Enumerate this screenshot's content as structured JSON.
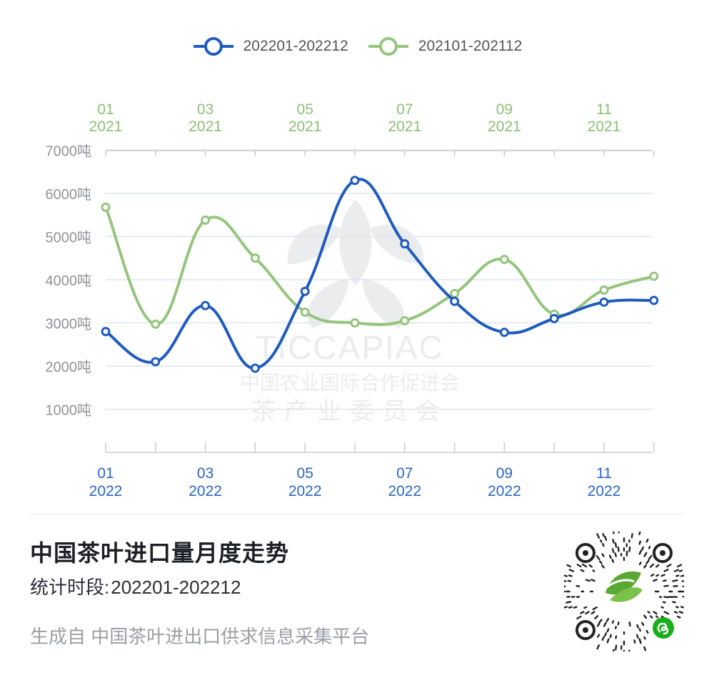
{
  "colors": {
    "series_2022": "#1f5bbf",
    "series_2021": "#95c47e",
    "axis_2022_label": "#2a66c6",
    "axis_2021_label": "#8cbf74",
    "y_label": "#8f9399",
    "grid": "#dde4ef"
  },
  "chart_data": {
    "type": "line",
    "legend_position": "top-center",
    "grid": true,
    "ylim": [
      0,
      7000
    ],
    "y_ticks": [
      "1000吨",
      "2000吨",
      "3000吨",
      "4000吨",
      "5000吨",
      "6000吨",
      "7000吨"
    ],
    "x_bottom_ticks": [
      {
        "month": "01",
        "year": "2022"
      },
      {
        "month": "03",
        "year": "2022"
      },
      {
        "month": "05",
        "year": "2022"
      },
      {
        "month": "07",
        "year": "2022"
      },
      {
        "month": "09",
        "year": "2022"
      },
      {
        "month": "11",
        "year": "2022"
      }
    ],
    "x_top_ticks": [
      {
        "month": "01",
        "year": "2021"
      },
      {
        "month": "03",
        "year": "2021"
      },
      {
        "month": "05",
        "year": "2021"
      },
      {
        "month": "07",
        "year": "2021"
      },
      {
        "month": "09",
        "year": "2021"
      },
      {
        "month": "11",
        "year": "2021"
      }
    ],
    "series": [
      {
        "name": "202201-202212",
        "color": "#1f5bbf",
        "axis": "bottom",
        "values": [
          2800,
          2100,
          3400,
          1950,
          3730,
          6300,
          4830,
          3500,
          2780,
          3100,
          3480,
          3520
        ]
      },
      {
        "name": "202101-202112",
        "color": "#95c47e",
        "axis": "top",
        "values": [
          5680,
          2970,
          5380,
          4500,
          3250,
          3000,
          3050,
          3680,
          4470,
          3200,
          3760,
          4080
        ]
      }
    ]
  },
  "watermark": {
    "logo_text": "TICCAPIAC",
    "line1": "中国农业国际合作促进会",
    "line2": "茶产业委员会"
  },
  "footer": {
    "title": "中国茶叶进口量月度走势",
    "period_label": "统计时段:",
    "period_value": "202201-202212",
    "source": "生成自 中国茶叶进出口供求信息采集平台"
  },
  "qr": {
    "icon": "mini-program-qr-icon"
  }
}
